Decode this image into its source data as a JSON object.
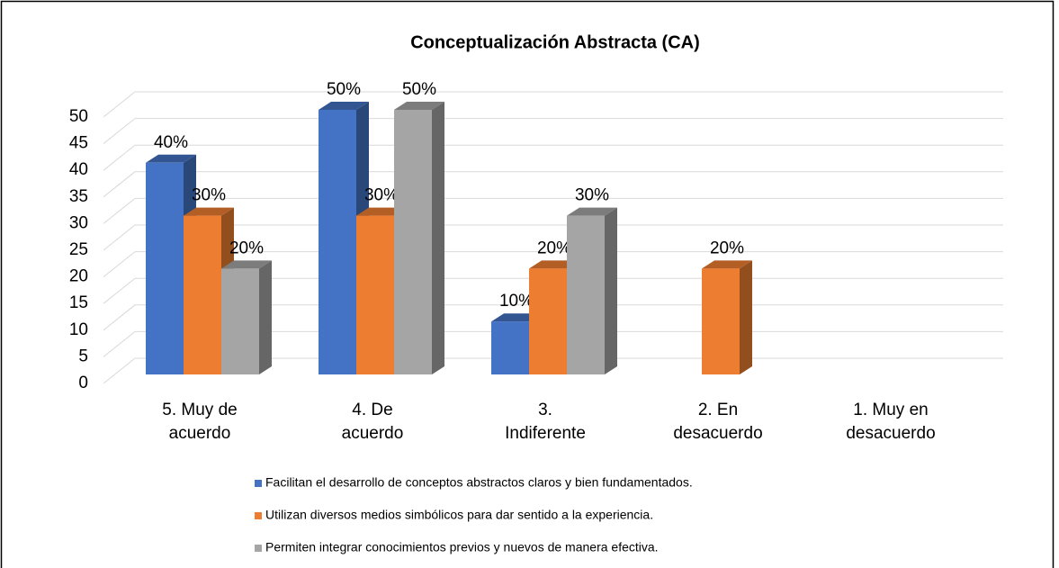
{
  "chart_data": {
    "type": "bar3d",
    "title": "Conceptualización Abstracta (CA)",
    "categories": [
      "5. Muy de acuerdo",
      "4. De acuerdo",
      "3. Indiferente",
      "2. En desacuerdo",
      "1. Muy en desacuerdo"
    ],
    "series": [
      {
        "name": "Facilitan el desarrollo de conceptos abstractos claros y bien fundamentados.",
        "color": "#4472c4",
        "values": [
          40,
          50,
          10,
          null,
          null
        ],
        "value_labels": [
          "40%",
          "50%",
          "10%",
          null,
          null
        ]
      },
      {
        "name": "Utilizan diversos medios simbólicos para dar sentido a la experiencia.",
        "color": "#ed7d31",
        "values": [
          30,
          30,
          20,
          20,
          null
        ],
        "value_labels": [
          "30%",
          "30%",
          "20%",
          "20%",
          null
        ]
      },
      {
        "name": "Permiten integrar conocimientos previos y nuevos de manera efectiva.",
        "color": "#a5a5a5",
        "values": [
          20,
          50,
          30,
          null,
          null
        ],
        "value_labels": [
          "20%",
          "50%",
          "30%",
          null,
          null
        ]
      }
    ],
    "ylim": [
      0,
      50
    ],
    "yticks": [
      0,
      5,
      10,
      15,
      20,
      25,
      30,
      35,
      40,
      45,
      50
    ],
    "grid": true,
    "legend": "bottom"
  }
}
